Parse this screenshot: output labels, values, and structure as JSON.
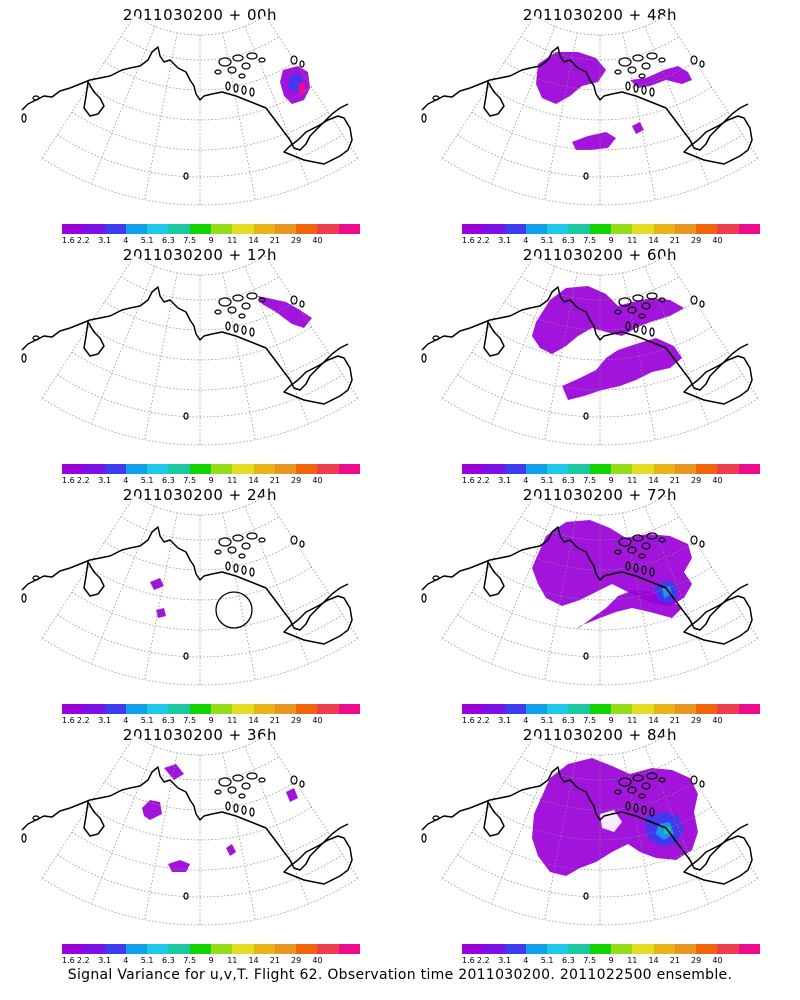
{
  "panels": [
    {
      "title": "2011030200 + 00h"
    },
    {
      "title": "2011030200 + 48h"
    },
    {
      "title": "2011030200 + 12h"
    },
    {
      "title": "2011030200 + 60h"
    },
    {
      "title": "2011030200 + 24h"
    },
    {
      "title": "2011030200 + 72h"
    },
    {
      "title": "2011030200 + 36h"
    },
    {
      "title": "2011030200 + 84h"
    }
  ],
  "legend": {
    "labels": [
      "1.6",
      "2.2",
      "3.1",
      "4",
      "5.1",
      "6.3",
      "7.5",
      "9",
      "11",
      "14",
      "21",
      "29",
      "40"
    ],
    "colors": [
      "#9a00d8",
      "#7a12e8",
      "#3c3cf0",
      "#14a0e8",
      "#1ec8e6",
      "#1cc8a0",
      "#14d200",
      "#96dc14",
      "#e6dc1e",
      "#e6b414",
      "#e6961e",
      "#f0640a",
      "#f03c50",
      "#f00a8c"
    ]
  },
  "footer": {
    "caption": "Signal Variance for u,v,T. Flight 62. Observation time 2011030200. 2011022500 ensemble."
  }
}
